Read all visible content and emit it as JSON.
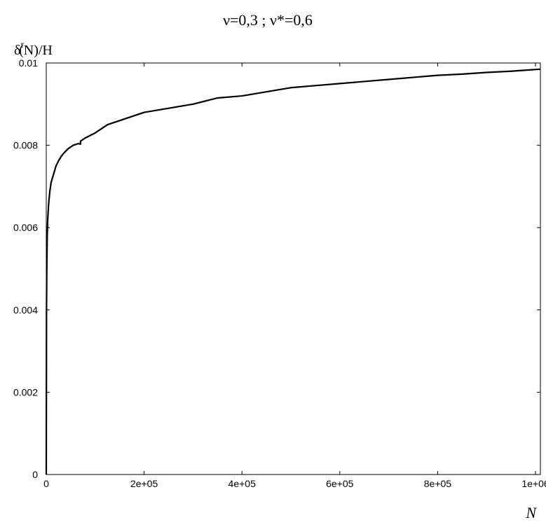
{
  "chart_data": {
    "type": "line",
    "title": "ν=0,3 ; ν*=0,6",
    "ylabel": {
      "prefix": "δ",
      "superscript": "r",
      "rest": "(N)/H"
    },
    "xlabel": "N",
    "xlim": [
      0,
      1010000
    ],
    "ylim": [
      0,
      0.01
    ],
    "xticks": [
      {
        "value": 0,
        "label": "0"
      },
      {
        "value": 200000,
        "label": "2e+05"
      },
      {
        "value": 400000,
        "label": "4e+05"
      },
      {
        "value": 600000,
        "label": "6e+05"
      },
      {
        "value": 800000,
        "label": "8e+05"
      },
      {
        "value": 1000000,
        "label": "1e+06"
      }
    ],
    "yticks": [
      {
        "value": 0,
        "label": "0"
      },
      {
        "value": 0.002,
        "label": "0.002"
      },
      {
        "value": 0.004,
        "label": "0.004"
      },
      {
        "value": 0.006,
        "label": "0.006"
      },
      {
        "value": 0.008,
        "label": "0.008"
      },
      {
        "value": 0.01,
        "label": "0.01"
      }
    ],
    "grid": false,
    "series": [
      {
        "color": "#000000",
        "x": [
          0,
          500,
          1000,
          2000,
          3000,
          5000,
          7500,
          10000,
          15000,
          20000,
          25000,
          30000,
          35000,
          40000,
          45000,
          50000,
          55000,
          60000,
          65000,
          70000,
          70001,
          80000,
          100000,
          125000,
          150000,
          200000,
          250000,
          300000,
          350000,
          400000,
          450000,
          500000,
          550000,
          600000,
          650000,
          700000,
          750000,
          800000,
          850000,
          900000,
          950000,
          1010000
        ],
        "y": [
          0,
          0.004,
          0.0049,
          0.0058,
          0.0062,
          0.0066,
          0.0069,
          0.0071,
          0.0073,
          0.0075,
          0.00762,
          0.00772,
          0.0078,
          0.00786,
          0.00792,
          0.00796,
          0.008,
          0.00802,
          0.00804,
          0.00803,
          0.0081,
          0.00818,
          0.0083,
          0.0085,
          0.0086,
          0.0088,
          0.0089,
          0.009,
          0.00915,
          0.0092,
          0.0093,
          0.0094,
          0.00945,
          0.0095,
          0.00955,
          0.0096,
          0.00965,
          0.0097,
          0.00973,
          0.00977,
          0.0098,
          0.00985
        ]
      }
    ]
  }
}
